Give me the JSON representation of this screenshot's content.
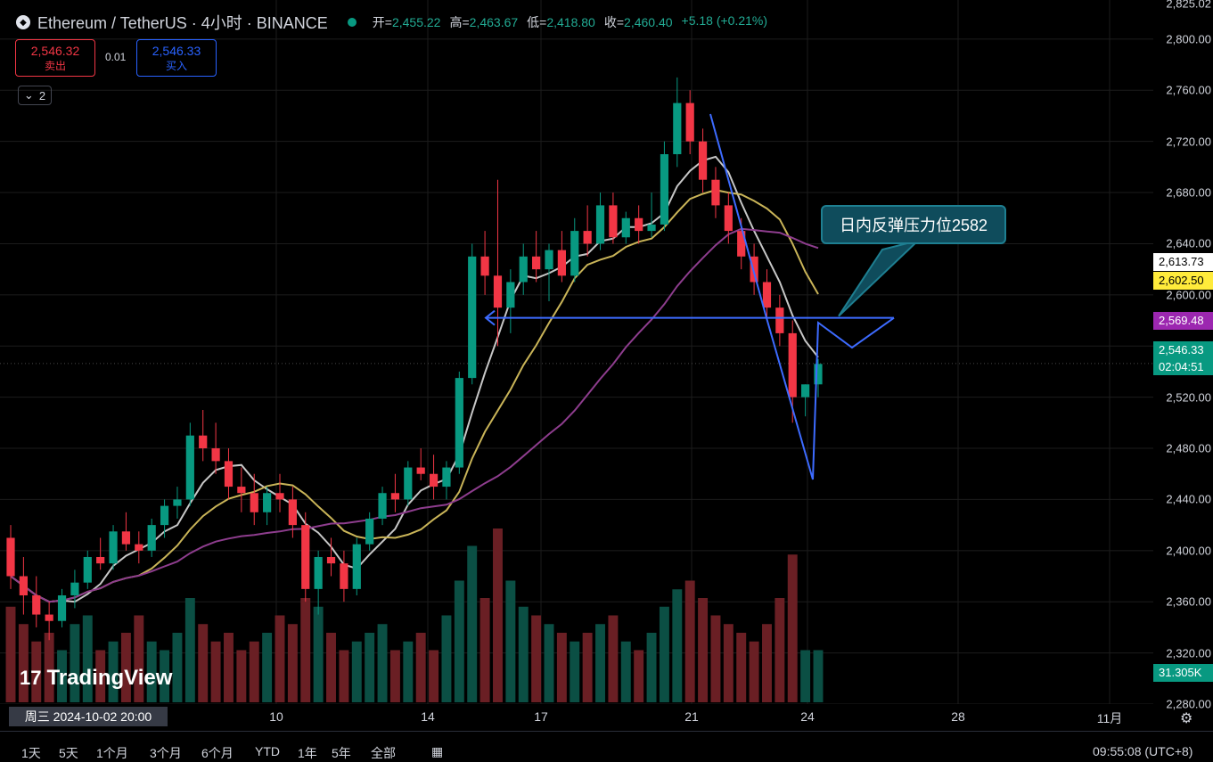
{
  "header": {
    "symbol": "Ethereum / TetherUS · 4小时 · BINANCE",
    "ohlc": [
      {
        "k": "开=",
        "v": "2,455.22"
      },
      {
        "k": "高=",
        "v": "2,463.67"
      },
      {
        "k": "低=",
        "v": "2,418.80"
      },
      {
        "k": "收=",
        "v": "2,460.40"
      },
      {
        "k": "",
        "v": "+5.18 (+0.21%)"
      }
    ]
  },
  "trade": {
    "sell_price": "2,546.32",
    "sell_label": "卖出",
    "spread": "0.01",
    "buy_price": "2,546.33",
    "buy_label": "买入"
  },
  "indicator_toggle": "2",
  "callout_text": "日内反弹压力位2582",
  "price_axis": {
    "top_partial": "2,825.02",
    "ticks": [
      "2,800.00",
      "2,760.00",
      "2,720.00",
      "2,680.00",
      "2,640.00",
      "2,600.00",
      "2,560.00",
      "2,520.00",
      "2,480.00",
      "2,440.00",
      "2,400.00",
      "2,360.00",
      "2,320.00",
      "2,280.00"
    ],
    "tags": [
      {
        "text": "2,613.73",
        "bg": "#ffffff",
        "fg": "#000000"
      },
      {
        "text": "2,602.50",
        "bg": "#ffeb3b",
        "fg": "#000000"
      },
      {
        "text": "2,569.48",
        "bg": "#9c27b0",
        "fg": "#ffffff"
      },
      {
        "text": "2,546.33",
        "sub": "02:04:51",
        "bg": "#089981",
        "fg": "#ffffff"
      },
      {
        "text": "31.305K",
        "bg": "#089981",
        "fg": "#ffffff"
      }
    ]
  },
  "time_axis": {
    "cursor_label": "周三  2024-10-02   20:00",
    "ticks": [
      "10",
      "14",
      "17",
      "21",
      "24",
      "28",
      "11月"
    ]
  },
  "bottom_bar": {
    "ranges": [
      "1天",
      "5天",
      "1个月",
      "3个月",
      "6个月",
      "YTD",
      "1年",
      "5年",
      "全部"
    ],
    "clock": "09:55:08 (UTC+8)"
  },
  "branding": "TradingView",
  "colors": {
    "up": "#089981",
    "down": "#f23645",
    "ma_short": "#c7c7c7",
    "ma_mid": "#c9b458",
    "ma_long": "#8e3d8e",
    "drawing": "#3d6bff"
  },
  "chart_data": {
    "type": "candlestick",
    "title": "",
    "ylim": [
      2280,
      2825
    ],
    "last_price": 2546.33,
    "resistance_level": 2582,
    "moving_averages_last": {
      "white": 2613.73,
      "yellow": 2602.5,
      "purple": 2569.48
    },
    "candles": [
      [
        2410,
        2420,
        2370,
        2380
      ],
      [
        2380,
        2395,
        2350,
        2365
      ],
      [
        2365,
        2380,
        2340,
        2350
      ],
      [
        2350,
        2360,
        2330,
        2345
      ],
      [
        2345,
        2370,
        2340,
        2365
      ],
      [
        2365,
        2385,
        2355,
        2375
      ],
      [
        2375,
        2400,
        2370,
        2395
      ],
      [
        2395,
        2410,
        2385,
        2390
      ],
      [
        2390,
        2420,
        2385,
        2415
      ],
      [
        2415,
        2430,
        2400,
        2405
      ],
      [
        2405,
        2415,
        2390,
        2400
      ],
      [
        2400,
        2425,
        2395,
        2420
      ],
      [
        2420,
        2440,
        2410,
        2435
      ],
      [
        2435,
        2450,
        2425,
        2440
      ],
      [
        2440,
        2500,
        2435,
        2490
      ],
      [
        2490,
        2510,
        2470,
        2480
      ],
      [
        2480,
        2500,
        2460,
        2470
      ],
      [
        2470,
        2480,
        2440,
        2450
      ],
      [
        2450,
        2465,
        2430,
        2445
      ],
      [
        2445,
        2460,
        2420,
        2430
      ],
      [
        2430,
        2450,
        2420,
        2445
      ],
      [
        2445,
        2460,
        2430,
        2440
      ],
      [
        2440,
        2450,
        2410,
        2420
      ],
      [
        2420,
        2430,
        2360,
        2370
      ],
      [
        2370,
        2400,
        2350,
        2395
      ],
      [
        2395,
        2410,
        2380,
        2390
      ],
      [
        2390,
        2400,
        2360,
        2370
      ],
      [
        2370,
        2410,
        2365,
        2405
      ],
      [
        2405,
        2430,
        2400,
        2425
      ],
      [
        2425,
        2450,
        2420,
        2445
      ],
      [
        2445,
        2460,
        2430,
        2440
      ],
      [
        2440,
        2470,
        2435,
        2465
      ],
      [
        2465,
        2480,
        2455,
        2460
      ],
      [
        2460,
        2475,
        2440,
        2450
      ],
      [
        2450,
        2470,
        2440,
        2465
      ],
      [
        2465,
        2540,
        2460,
        2535
      ],
      [
        2535,
        2640,
        2530,
        2630
      ],
      [
        2630,
        2650,
        2600,
        2615
      ],
      [
        2615,
        2690,
        2560,
        2590
      ],
      [
        2590,
        2620,
        2570,
        2610
      ],
      [
        2610,
        2640,
        2600,
        2630
      ],
      [
        2630,
        2650,
        2610,
        2620
      ],
      [
        2620,
        2640,
        2595,
        2635
      ],
      [
        2635,
        2650,
        2610,
        2615
      ],
      [
        2615,
        2660,
        2610,
        2650
      ],
      [
        2650,
        2670,
        2630,
        2640
      ],
      [
        2640,
        2680,
        2635,
        2670
      ],
      [
        2670,
        2680,
        2640,
        2645
      ],
      [
        2645,
        2665,
        2640,
        2660
      ],
      [
        2660,
        2670,
        2640,
        2650
      ],
      [
        2650,
        2680,
        2645,
        2655
      ],
      [
        2655,
        2720,
        2650,
        2710
      ],
      [
        2710,
        2770,
        2700,
        2750
      ],
      [
        2750,
        2760,
        2710,
        2720
      ],
      [
        2720,
        2730,
        2680,
        2690
      ],
      [
        2690,
        2700,
        2660,
        2670
      ],
      [
        2670,
        2680,
        2640,
        2650
      ],
      [
        2650,
        2660,
        2620,
        2630
      ],
      [
        2630,
        2640,
        2600,
        2610
      ],
      [
        2610,
        2620,
        2580,
        2590
      ],
      [
        2590,
        2600,
        2560,
        2570
      ],
      [
        2570,
        2580,
        2500,
        2520
      ],
      [
        2520,
        2530,
        2505,
        2530
      ],
      [
        2530,
        2550,
        2520,
        2546
      ]
    ],
    "volumes": [
      0.55,
      0.45,
      0.35,
      0.4,
      0.3,
      0.45,
      0.5,
      0.3,
      0.35,
      0.4,
      0.5,
      0.35,
      0.3,
      0.4,
      0.6,
      0.45,
      0.35,
      0.4,
      0.3,
      0.35,
      0.4,
      0.5,
      0.45,
      0.6,
      0.55,
      0.4,
      0.3,
      0.35,
      0.4,
      0.45,
      0.3,
      0.35,
      0.4,
      0.3,
      0.5,
      0.7,
      0.9,
      0.6,
      1.0,
      0.7,
      0.55,
      0.5,
      0.45,
      0.4,
      0.35,
      0.4,
      0.45,
      0.5,
      0.35,
      0.3,
      0.4,
      0.55,
      0.65,
      0.7,
      0.6,
      0.5,
      0.45,
      0.4,
      0.35,
      0.45,
      0.6,
      0.85,
      0.3,
      0.3
    ]
  }
}
